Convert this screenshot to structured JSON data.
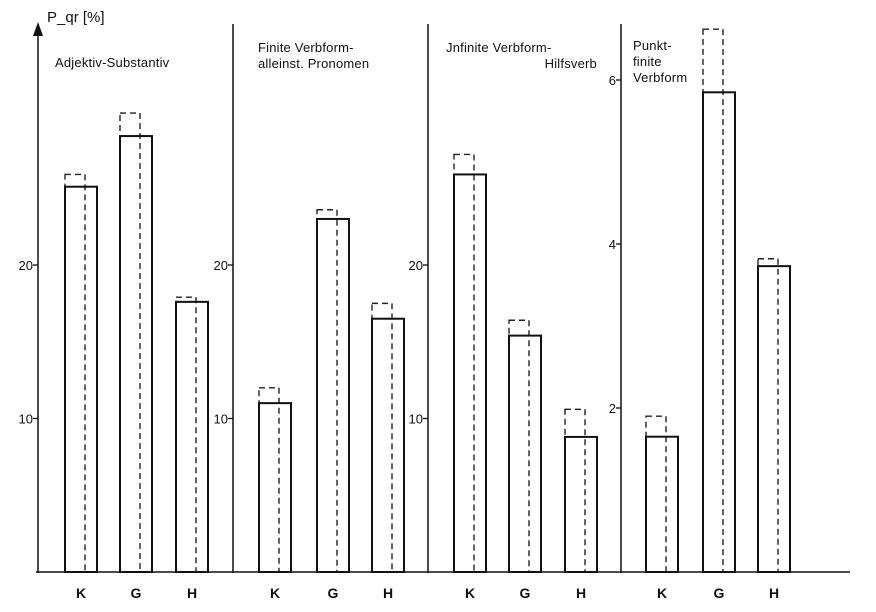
{
  "chart_data": {
    "type": "bar",
    "ylabel": "P_qr [%]",
    "bar_style": {
      "solid": "solid outline bar",
      "dashed": "dashed outline bar"
    },
    "panels": [
      {
        "title_lines": [
          "Adjektiv-Substantiv"
        ],
        "title_align": "start",
        "categories": [
          "K",
          "G",
          "H"
        ],
        "y_ticks": [
          "10",
          "20"
        ],
        "ylim": [
          0,
          32
        ],
        "series": [
          {
            "style": "solid",
            "values": [
              25.1,
              28.4,
              17.6
            ]
          },
          {
            "style": "dashed",
            "values": [
              25.9,
              29.9,
              17.9
            ]
          }
        ]
      },
      {
        "title_lines": [
          "Finite Verbform-",
          "alleinst. Pronomen"
        ],
        "title_align": "start",
        "categories": [
          "K",
          "G",
          "H"
        ],
        "y_ticks": [
          "10",
          "20"
        ],
        "ylim": [
          0,
          32
        ],
        "series": [
          {
            "style": "solid",
            "values": [
              11.0,
              23.0,
              16.5
            ]
          },
          {
            "style": "dashed",
            "values": [
              12.0,
              23.6,
              17.5
            ]
          }
        ]
      },
      {
        "title_lines": [
          "Jnfinite Verbform-",
          "Hilfsverb"
        ],
        "title_align": "end",
        "categories": [
          "K",
          "G",
          "H"
        ],
        "y_ticks": [
          "10",
          "20"
        ],
        "ylim": [
          0,
          32
        ],
        "series": [
          {
            "style": "solid",
            "values": [
              25.9,
              15.4,
              8.8
            ]
          },
          {
            "style": "dashed",
            "values": [
              27.2,
              16.4,
              10.6
            ]
          }
        ]
      },
      {
        "title_lines": [
          "Punkt-",
          "finite",
          "Verbform"
        ],
        "title_align": "start",
        "categories": [
          "K",
          "G",
          "H"
        ],
        "y_ticks": [
          "2",
          "4",
          "6"
        ],
        "ylim": [
          0,
          6.8
        ],
        "series": [
          {
            "style": "solid",
            "values": [
              1.65,
              5.85,
              3.73
            ]
          },
          {
            "style": "dashed",
            "values": [
              1.9,
              6.62,
              3.82
            ]
          }
        ]
      }
    ]
  }
}
